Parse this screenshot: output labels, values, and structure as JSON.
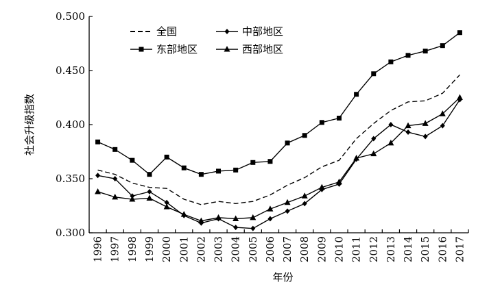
{
  "chart_data": {
    "type": "line",
    "title": "",
    "xlabel": "年份",
    "ylabel": "社会升级指数",
    "x": [
      "1996",
      "1997",
      "1998",
      "1999",
      "2000",
      "2001",
      "2002",
      "2003",
      "2004",
      "2005",
      "2006",
      "2007",
      "2008",
      "2009",
      "2010",
      "2011",
      "2012",
      "2013",
      "2014",
      "2015",
      "2016",
      "2017"
    ],
    "ylim": [
      0.3,
      0.5
    ],
    "yticks": [
      "0.300",
      "0.350",
      "0.400",
      "0.450",
      "0.500"
    ],
    "grid": false,
    "legend_position": "top-left",
    "series": [
      {
        "name": "全国",
        "marker": "none",
        "dash": true,
        "values": [
          0.358,
          0.354,
          0.346,
          0.342,
          0.341,
          0.331,
          0.326,
          0.329,
          0.327,
          0.329,
          0.335,
          0.344,
          0.351,
          0.361,
          0.367,
          0.387,
          0.401,
          0.413,
          0.421,
          0.422,
          0.429,
          0.446
        ]
      },
      {
        "name": "中部地区",
        "marker": "diamond",
        "dash": false,
        "values": [
          0.353,
          0.35,
          0.334,
          0.338,
          0.328,
          0.316,
          0.309,
          0.313,
          0.305,
          0.304,
          0.313,
          0.32,
          0.327,
          0.34,
          0.345,
          0.368,
          0.387,
          0.4,
          0.393,
          0.389,
          0.399,
          0.423
        ]
      },
      {
        "name": "东部地区",
        "marker": "square",
        "dash": false,
        "values": [
          0.384,
          0.377,
          0.367,
          0.354,
          0.37,
          0.36,
          0.354,
          0.357,
          0.358,
          0.365,
          0.366,
          0.383,
          0.39,
          0.402,
          0.406,
          0.428,
          0.447,
          0.458,
          0.464,
          0.468,
          0.473,
          0.485
        ]
      },
      {
        "name": "西部地区",
        "marker": "triangle",
        "dash": false,
        "values": [
          0.338,
          0.333,
          0.331,
          0.332,
          0.324,
          0.317,
          0.311,
          0.314,
          0.313,
          0.314,
          0.322,
          0.328,
          0.334,
          0.342,
          0.347,
          0.369,
          0.373,
          0.383,
          0.399,
          0.401,
          0.41,
          0.425
        ]
      }
    ]
  }
}
